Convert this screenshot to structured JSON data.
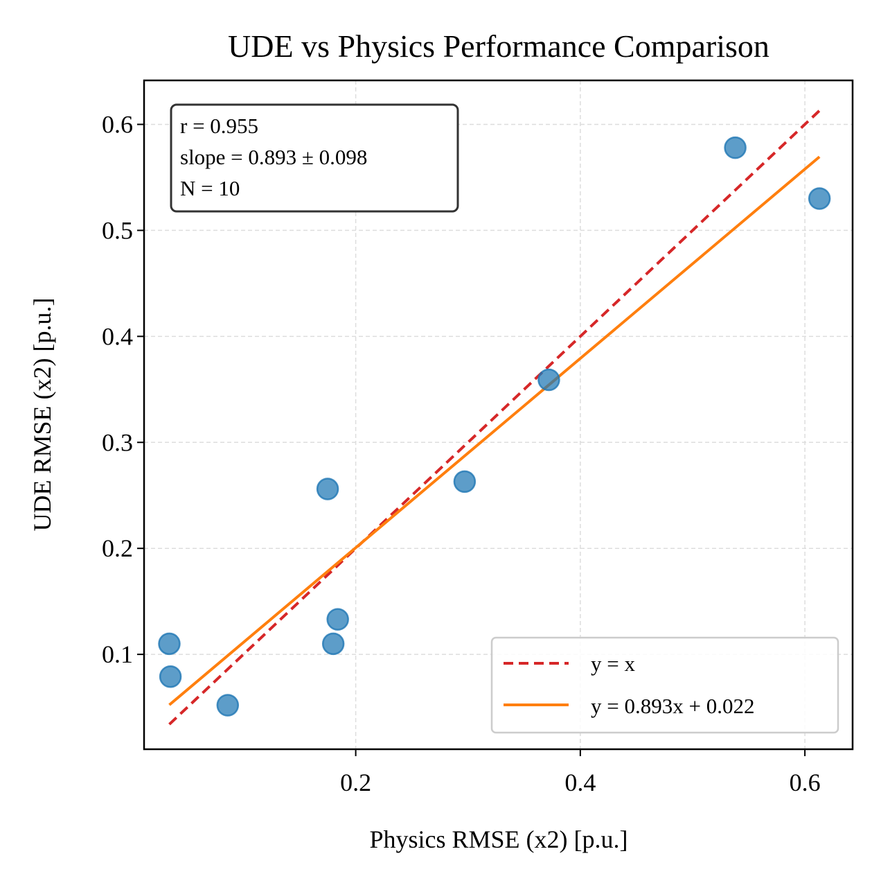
{
  "chart_data": {
    "type": "scatter",
    "title": "UDE vs Physics Performance Comparison",
    "xlabel": "Physics RMSE (x2) [p.u.]",
    "ylabel": "UDE RMSE (x2) [p.u.]",
    "xlim": [
      0.0115,
      0.6425
    ],
    "ylim": [
      0.0105,
      0.6415
    ],
    "xticks": [
      0.2,
      0.4,
      0.6
    ],
    "xtick_labels": [
      "0.2",
      "0.4",
      "0.6"
    ],
    "yticks": [
      0.1,
      0.2,
      0.3,
      0.4,
      0.5,
      0.6
    ],
    "ytick_labels": [
      "0.1",
      "0.2",
      "0.3",
      "0.4",
      "0.5",
      "0.6"
    ],
    "grid": true,
    "points": [
      {
        "x": 0.034,
        "y": 0.11
      },
      {
        "x": 0.035,
        "y": 0.079
      },
      {
        "x": 0.086,
        "y": 0.052
      },
      {
        "x": 0.175,
        "y": 0.256
      },
      {
        "x": 0.18,
        "y": 0.11
      },
      {
        "x": 0.184,
        "y": 0.133
      },
      {
        "x": 0.297,
        "y": 0.263
      },
      {
        "x": 0.372,
        "y": 0.359
      },
      {
        "x": 0.538,
        "y": 0.578
      },
      {
        "x": 0.613,
        "y": 0.53
      }
    ],
    "reference_line": {
      "label": "y = x",
      "x": [
        0.034,
        0.613
      ],
      "y": [
        0.034,
        0.613
      ],
      "color": "#d62728",
      "style": "dashed"
    },
    "fit_line": {
      "label": "y = 0.893x + 0.022",
      "slope": 0.893,
      "intercept": 0.022,
      "x": [
        0.034,
        0.613
      ],
      "color": "#ff7f0e",
      "style": "solid"
    },
    "stats_box": {
      "lines": [
        "r = 0.955",
        "slope = 0.893 ± 0.098",
        "N = 10"
      ],
      "position": "top-left"
    },
    "legend": {
      "position": "bottom-right",
      "entries": [
        "y = x",
        "y = 0.893x + 0.022"
      ]
    },
    "colors": {
      "points": "#1f77b4",
      "reference": "#d62728",
      "fit": "#ff7f0e"
    }
  }
}
